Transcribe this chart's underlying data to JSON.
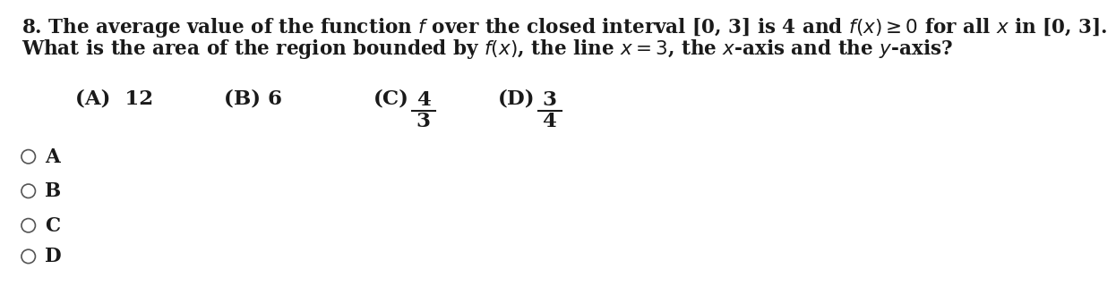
{
  "line1": "8. The average value of the function $\\mathbf{f}$ over the closed interval $\\mathbf{[0, 3]}$ is $\\mathbf{4}$ and $\\mathbf{f(x) \\geq 0}$ for all $\\mathbf{x}$ in $\\mathbf{[0, 3]}$.",
  "line2": "What is the area of the region bounded by $\\mathbf{f(x)}$, the line $\\mathbf{x = 3}$, the $\\mathbf{x}$-axis and the $\\mathbf{y}$-axis?",
  "choice_A": "(A)  12",
  "choice_B": "(B) 6",
  "choice_C_label": "(C)",
  "choice_C_num": "4",
  "choice_C_den": "3",
  "choice_D_label": "(D)",
  "choice_D_num": "3",
  "choice_D_den": "4",
  "radio_labels": [
    "A",
    "B",
    "C",
    "D"
  ],
  "background_color": "#ffffff",
  "text_color": "#1a1a1a",
  "font_size_main": 15.5,
  "font_size_choices": 16.5
}
